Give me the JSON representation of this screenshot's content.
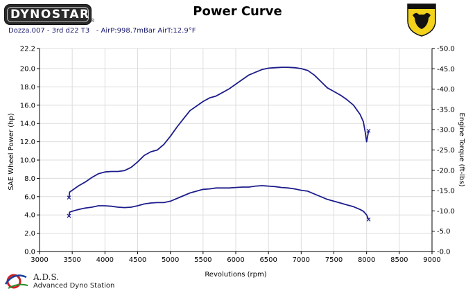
{
  "header": {
    "logo_text": "DYNOSTAR",
    "logo_subtext": "®",
    "title": "Power Curve",
    "run_info": "Dozza.007 - 3rd d22 T3   - AirP:998.7mBar AirT:12.9°F"
  },
  "footer": {
    "brand": "A.D.S.",
    "tagline": "Advanced Dyno Station"
  },
  "icons": {
    "top_right": "bull-shield-icon",
    "bottom_left": "ads-swirl-icon"
  },
  "colors": {
    "series": "#1c1c8c",
    "axis": "#000000",
    "grid": "#dcdcdc"
  },
  "chart_data": {
    "type": "line",
    "title": "Power Curve",
    "xlabel": "Revolutions (rpm)",
    "ylabel": "SAE Wheel Power (hp)",
    "y2label": "Engine Torque (ft-lbs)",
    "xlim": [
      3000,
      9000
    ],
    "ylim": [
      0,
      22.2
    ],
    "y2lim": [
      0,
      -50
    ],
    "xticks": [
      "3000",
      "3500",
      "4000",
      "4500",
      "5000",
      "5500",
      "6000",
      "6500",
      "7000",
      "7500",
      "8000",
      "8500",
      "9000"
    ],
    "yticks": [
      "0.0",
      "2.0",
      "4.0",
      "6.0",
      "8.0",
      "10.0",
      "12.0",
      "14.0",
      "16.0",
      "18.0",
      "20.0",
      "22.2"
    ],
    "y2ticks": [
      "-0.0",
      "-5.0",
      "-10.0",
      "-15.0",
      "-20.0",
      "-25.0",
      "-30.0",
      "-35.0",
      "-40.0",
      "-45.0",
      "-50.0"
    ],
    "grid": true,
    "series": [
      {
        "axis": "left",
        "x": [
          3450,
          3460,
          3500,
          3600,
          3700,
          3800,
          3900,
          4000,
          4100,
          4200,
          4300,
          4400,
          4500,
          4600,
          4700,
          4800,
          4900,
          5000,
          5100,
          5200,
          5300,
          5400,
          5500,
          5600,
          5700,
          5800,
          5900,
          6000,
          6100,
          6200,
          6300,
          6400,
          6500,
          6600,
          6700,
          6800,
          6900,
          7000,
          7100,
          7200,
          7300,
          7400,
          7500,
          7600,
          7700,
          7800,
          7900,
          7950,
          7980,
          8000,
          8020,
          8030
        ],
        "y": [
          5.9,
          6.5,
          6.7,
          7.2,
          7.6,
          8.1,
          8.5,
          8.7,
          8.75,
          8.75,
          8.85,
          9.2,
          9.8,
          10.5,
          10.9,
          11.1,
          11.7,
          12.6,
          13.6,
          14.5,
          15.4,
          15.9,
          16.4,
          16.8,
          17.0,
          17.4,
          17.8,
          18.3,
          18.8,
          19.3,
          19.6,
          19.9,
          20.05,
          20.1,
          20.15,
          20.15,
          20.1,
          20.0,
          19.8,
          19.3,
          18.6,
          17.9,
          17.5,
          17.1,
          16.6,
          16.0,
          15.0,
          14.2,
          13.0,
          12.0,
          12.8,
          13.2
        ]
      },
      {
        "axis": "left",
        "x": [
          3450,
          3460,
          3500,
          3600,
          3700,
          3800,
          3900,
          4000,
          4100,
          4200,
          4300,
          4400,
          4500,
          4600,
          4700,
          4800,
          4900,
          5000,
          5100,
          5200,
          5300,
          5400,
          5500,
          5600,
          5700,
          5800,
          5900,
          6000,
          6100,
          6200,
          6300,
          6400,
          6500,
          6600,
          6700,
          6800,
          6900,
          7000,
          7100,
          7200,
          7300,
          7400,
          7500,
          7600,
          7700,
          7800,
          7900,
          7950,
          8000,
          8030
        ],
        "y": [
          3.9,
          4.3,
          4.4,
          4.6,
          4.75,
          4.85,
          5.0,
          5.0,
          4.95,
          4.85,
          4.8,
          4.85,
          5.0,
          5.2,
          5.3,
          5.35,
          5.35,
          5.5,
          5.8,
          6.1,
          6.4,
          6.6,
          6.8,
          6.85,
          6.95,
          6.95,
          6.95,
          7.0,
          7.05,
          7.05,
          7.15,
          7.2,
          7.15,
          7.1,
          7.0,
          6.95,
          6.85,
          6.7,
          6.6,
          6.3,
          6.0,
          5.7,
          5.5,
          5.3,
          5.1,
          4.9,
          4.6,
          4.4,
          4.0,
          3.5
        ]
      }
    ]
  }
}
